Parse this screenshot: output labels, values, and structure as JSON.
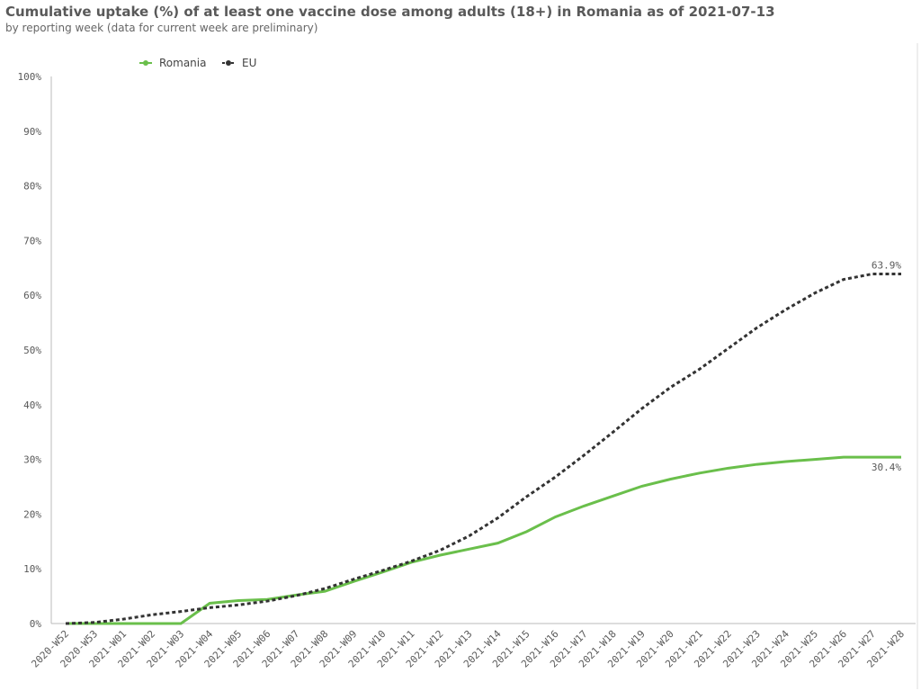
{
  "chart_data": {
    "type": "line",
    "title": "Cumulative uptake (%) of at least one vaccine dose among adults (18+) in Romania as of 2021-07-13",
    "subtitle": "by reporting week (data for current week are preliminary)",
    "categories": [
      "2020-W52",
      "2020-W53",
      "2021-W01",
      "2021-W02",
      "2021-W03",
      "2021-W04",
      "2021-W05",
      "2021-W06",
      "2021-W07",
      "2021-W08",
      "2021-W09",
      "2021-W10",
      "2021-W11",
      "2021-W12",
      "2021-W13",
      "2021-W14",
      "2021-W15",
      "2021-W16",
      "2021-W17",
      "2021-W18",
      "2021-W19",
      "2021-W20",
      "2021-W21",
      "2021-W22",
      "2021-W23",
      "2021-W24",
      "2021-W25",
      "2021-W26",
      "2021-W27",
      "2021-W28"
    ],
    "series": [
      {
        "name": "Romania",
        "color": "#6abf4b",
        "dashed": false,
        "values": [
          0,
          0,
          0,
          0,
          0,
          3.7,
          4.2,
          4.4,
          5.2,
          5.9,
          7.7,
          9.4,
          11.2,
          12.5,
          13.6,
          14.7,
          16.8,
          19.5,
          21.5,
          23.3,
          25.1,
          26.4,
          27.5,
          28.4,
          29.1,
          29.6,
          30.0,
          30.4,
          30.4,
          30.4
        ],
        "value_labels": [
          null,
          null,
          null,
          null,
          null,
          null,
          null,
          null,
          null,
          null,
          null,
          null,
          null,
          null,
          null,
          null,
          null,
          null,
          null,
          null,
          null,
          null,
          null,
          null,
          null,
          null,
          null,
          null,
          null,
          "30.4%"
        ]
      },
      {
        "name": "EU",
        "color": "#333333",
        "dashed": true,
        "values": [
          0,
          0.2,
          0.8,
          1.6,
          2.2,
          2.9,
          3.4,
          4.1,
          5.1,
          6.4,
          8.1,
          9.7,
          11.4,
          13.4,
          16.0,
          19.3,
          23.2,
          26.8,
          30.8,
          35.0,
          39.3,
          43.2,
          46.5,
          50.3,
          54.1,
          57.4,
          60.4,
          62.9,
          63.9,
          63.9
        ],
        "value_labels": [
          null,
          null,
          null,
          null,
          null,
          null,
          null,
          null,
          null,
          null,
          null,
          null,
          null,
          null,
          null,
          null,
          null,
          null,
          null,
          null,
          null,
          null,
          null,
          null,
          null,
          null,
          null,
          null,
          null,
          "63.9%"
        ]
      }
    ],
    "ylim": [
      0,
      100
    ],
    "yticks": [
      {
        "value": 0,
        "label": "0%"
      },
      {
        "value": 10,
        "label": "10%"
      },
      {
        "value": 20,
        "label": "20%"
      },
      {
        "value": 30,
        "label": "30%"
      },
      {
        "value": 40,
        "label": "40%"
      },
      {
        "value": 50,
        "label": "50%"
      },
      {
        "value": 60,
        "label": "60%"
      },
      {
        "value": 70,
        "label": "70%"
      },
      {
        "value": 80,
        "label": "80%"
      },
      {
        "value": 90,
        "label": "90%"
      },
      {
        "value": 100,
        "label": "100%"
      }
    ],
    "grid": false
  }
}
